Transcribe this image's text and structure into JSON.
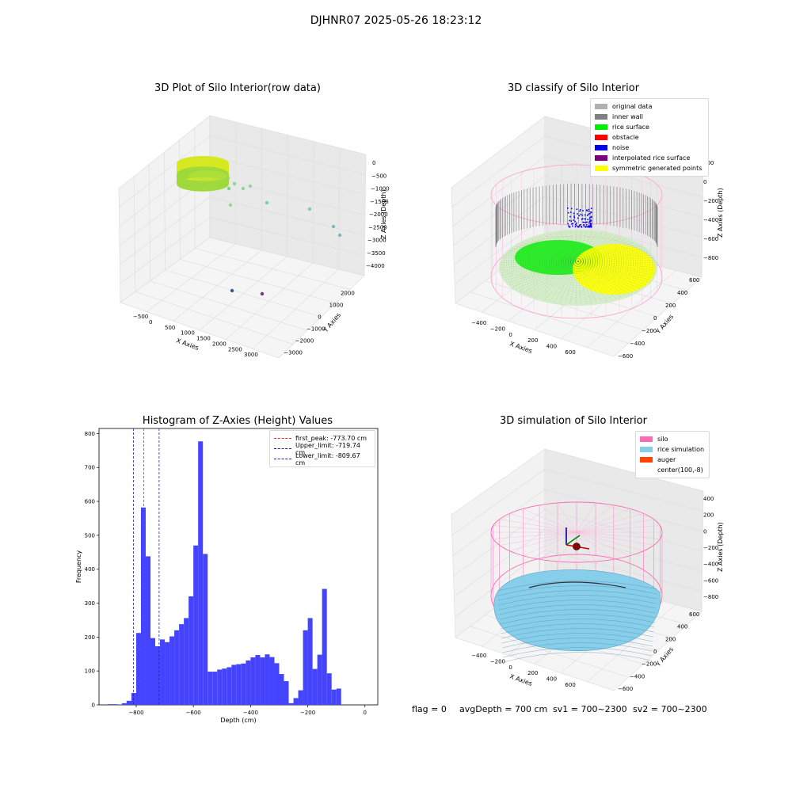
{
  "suptitle": "DJHNR07 2025-05-26 18:23:12",
  "status": {
    "flag": "flag = 0",
    "avg_depth": "avgDepth = 700 cm",
    "sv1": "sv1 = 700~2300",
    "sv2": "sv2 = 700~2300"
  },
  "chart_data": [
    {
      "type": "scatter",
      "dimension": "3d",
      "title": "3D Plot of Silo Interior(row data)",
      "xlabel": "X Axies",
      "ylabel": "Y Axies",
      "zlabel": "Z Axies (Depth)",
      "x_ticks": [
        "−500",
        "0",
        "500",
        "1000",
        "1500",
        "2000",
        "2500",
        "3000"
      ],
      "y_ticks": [
        "−3000",
        "−2000",
        "−1000",
        "0",
        "1000",
        "2000"
      ],
      "z_ticks": [
        "0",
        "−500",
        "−1000",
        "−1500",
        "−2000",
        "−2500",
        "−3000",
        "−3500",
        "−4000"
      ],
      "series": [
        {
          "points": [
            {
              "x": 0,
              "y": 0,
              "z": -700,
              "color": "#c8dc32"
            },
            {
              "x": 200,
              "y": 100,
              "z": -800,
              "color": "#9ed84a"
            },
            {
              "x": 600,
              "y": 300,
              "z": -950,
              "color": "#7fd17a"
            },
            {
              "x": 1000,
              "y": 800,
              "z": -1200,
              "color": "#8fd88f"
            },
            {
              "x": 1400,
              "y": 1200,
              "z": -1300,
              "color": "#8fd8a0"
            },
            {
              "x": 2000,
              "y": 1700,
              "z": -1400,
              "color": "#7fcfa8"
            },
            {
              "x": 2600,
              "y": 2100,
              "z": -1700,
              "color": "#6fc0b0"
            },
            {
              "x": 2900,
              "y": 2400,
              "z": -1900,
              "color": "#7fb8b8"
            },
            {
              "x": 1800,
              "y": -1500,
              "z": -3900,
              "color": "#2f5f90"
            },
            {
              "x": 2400,
              "y": -1700,
              "z": -4000,
              "color": "#6a3a8a"
            }
          ]
        }
      ]
    },
    {
      "type": "scatter",
      "dimension": "3d",
      "title": "3D classify of Silo Interior",
      "xlabel": "X Axies",
      "ylabel": "Y Axies",
      "zlabel": "Z Axies (Depth)",
      "x_ticks": [
        "−400",
        "−200",
        "0",
        "200",
        "400",
        "600"
      ],
      "y_ticks": [
        "−600",
        "−400",
        "−200",
        "0",
        "200",
        "400",
        "600"
      ],
      "z_ticks": [
        "200",
        "0",
        "−200",
        "−400",
        "−600",
        "−800"
      ],
      "legend": [
        {
          "label": "original data",
          "color": "#b0b0b0"
        },
        {
          "label": "inner wall",
          "color": "#808080"
        },
        {
          "label": "rice surface",
          "color": "#00ee00"
        },
        {
          "label": "obstacle",
          "color": "#ff0000"
        },
        {
          "label": "noise",
          "color": "#0000ee"
        },
        {
          "label": "interpolated rice surface",
          "color": "#800080"
        },
        {
          "label": "symmetric generated points",
          "color": "#ffff00"
        }
      ]
    },
    {
      "type": "bar",
      "subtype": "histogram",
      "title": "Histogram of Z-Axies (Height) Values",
      "xlabel": "Depth (cm)",
      "ylabel": "Frequency",
      "xlim": [
        -930,
        45
      ],
      "ylim": [
        0,
        815
      ],
      "x_ticks": [
        -800,
        -600,
        -400,
        -200,
        0
      ],
      "x_tick_labels": [
        "−800",
        "−600",
        "−400",
        "−200",
        "0"
      ],
      "y_ticks": [
        0,
        100,
        200,
        300,
        400,
        500,
        600,
        700,
        800
      ],
      "bin_width": 16.67,
      "bins_start": -900,
      "color": "#4444ff",
      "values": [
        2,
        2,
        0,
        5,
        12,
        35,
        212,
        582,
        438,
        197,
        173,
        193,
        185,
        202,
        220,
        238,
        256,
        320,
        470,
        777,
        445,
        98,
        98,
        104,
        107,
        111,
        118,
        120,
        122,
        131,
        140,
        147,
        140,
        149,
        141,
        123,
        91,
        70,
        5,
        20,
        43,
        220,
        256,
        106,
        148,
        342,
        93,
        45,
        48
      ],
      "lines": [
        {
          "label": "first_peak: -773.70 cm",
          "x": -773.7,
          "color": "#e03030"
        },
        {
          "label": "Upper_limit: -719.74 cm",
          "x": -719.74,
          "color": "#2020b0"
        },
        {
          "label": "Lower_limit: -809.67 cm",
          "x": -809.67,
          "color": "#2020b0"
        }
      ]
    },
    {
      "type": "area",
      "dimension": "3d",
      "title": "3D simulation of Silo Interior",
      "xlabel": "X Axies",
      "ylabel": "Y Axies",
      "zlabel": "Z Axies (Depth)",
      "x_ticks": [
        "−400",
        "−200",
        "0",
        "200",
        "400",
        "600"
      ],
      "y_ticks": [
        "−600",
        "−400",
        "−200",
        "0",
        "200",
        "400",
        "600"
      ],
      "z_ticks": [
        "400",
        "200",
        "0",
        "−200",
        "−400",
        "−600",
        "−800"
      ],
      "legend": [
        {
          "label": "silo",
          "color": "#ff69b4"
        },
        {
          "label": "rice simulation",
          "color": "#87ceeb"
        },
        {
          "label": "auger",
          "color": "#ff4500"
        },
        {
          "label": "center(100,-8)",
          "color": ""
        }
      ]
    }
  ]
}
